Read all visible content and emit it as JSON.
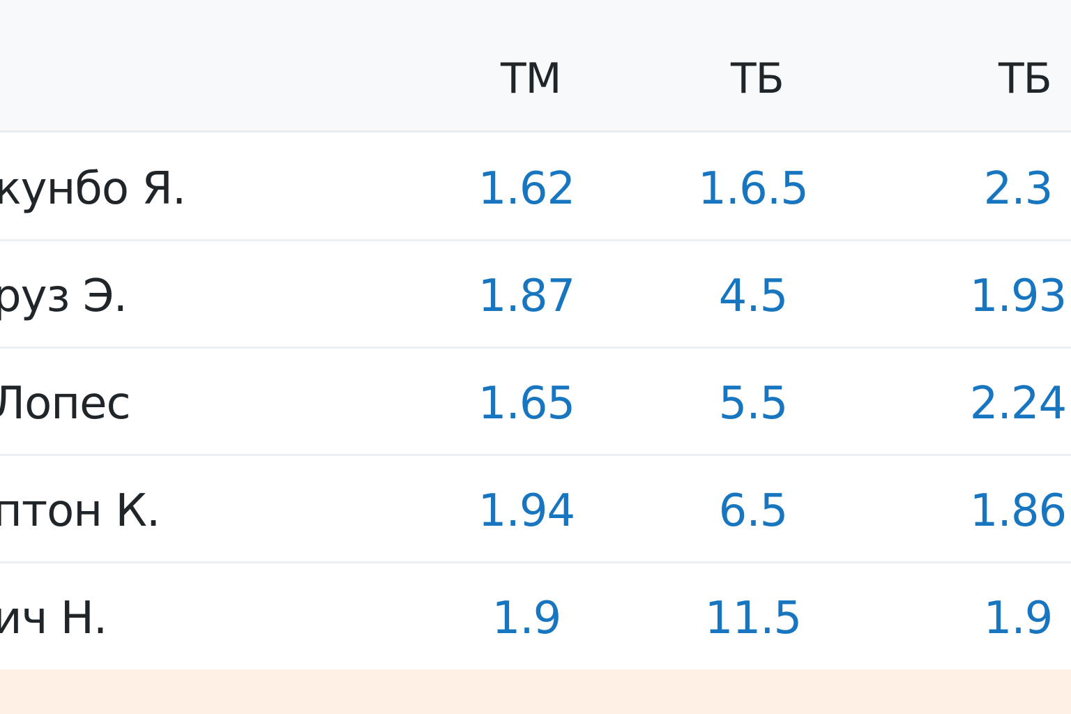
{
  "table": {
    "columns": [
      "ТМ",
      "ТБ",
      "ТБ"
    ],
    "rows": [
      {
        "player": "кунбо Я.",
        "odds": [
          "1.62",
          "1.6.5",
          "2.3"
        ]
      },
      {
        "player": "руз Э.",
        "odds": [
          "1.87",
          "4.5",
          "1.93"
        ]
      },
      {
        "player": "Лопес",
        "odds": [
          "1.65",
          "5.5",
          "2.24"
        ]
      },
      {
        "player": "птон К.",
        "odds": [
          "1.94",
          "6.5",
          "1.86"
        ]
      },
      {
        "player": "ич Н.",
        "odds": [
          "1.9",
          "11.5",
          "1.9"
        ]
      }
    ]
  },
  "colors": {
    "odds_text": "#1776bf",
    "label_text": "#1f2529",
    "header_bg": "#f8f9fa",
    "footer_bg": "#fef0e4"
  }
}
